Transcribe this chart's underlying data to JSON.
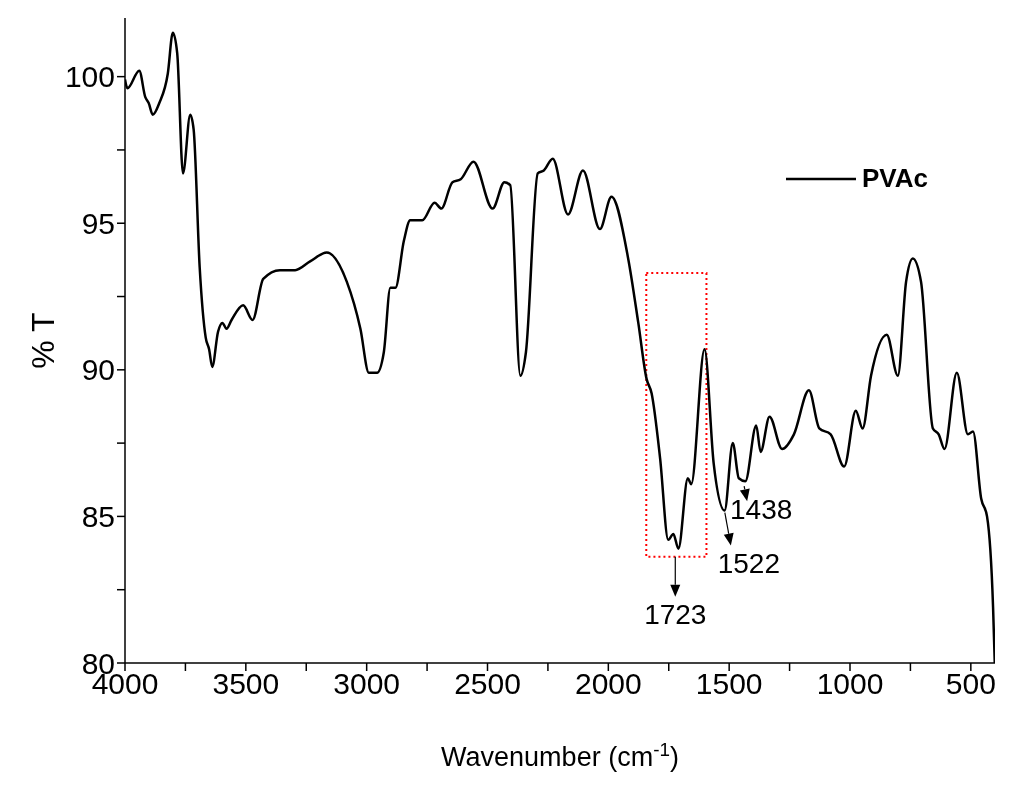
{
  "chart_data": {
    "type": "line",
    "xlabel": "Wavenumber (cm$^{-1}$)",
    "ylabel": "% T",
    "xlim": [
      4000,
      400
    ],
    "xticks": [
      4000,
      {
        "value": 3750,
        "label": null
      },
      3500,
      {
        "value": 3250,
        "label": null
      },
      3000,
      {
        "value": 2750,
        "label": null
      },
      2500,
      {
        "value": 2250,
        "label": null
      },
      2000,
      {
        "value": 1750,
        "label": null
      },
      1500,
      {
        "value": 1250,
        "label": null
      },
      1000,
      {
        "value": 750,
        "label": null
      },
      500
    ],
    "ylim": [
      80,
      102
    ],
    "yticks": [
      80,
      {
        "value": 82.5,
        "label": null
      },
      85,
      {
        "value": 87.5,
        "label": null
      },
      90,
      {
        "value": 92.5,
        "label": null
      },
      95,
      {
        "value": 97.5,
        "label": null
      },
      100
    ],
    "legend": "top right",
    "marker": "none",
    "line_style": "solid",
    "grid": false,
    "x": [
      4000,
      3990,
      3941,
      3916,
      3902,
      3885,
      3858,
      3823,
      3802,
      3784,
      3760,
      3730,
      3716,
      3691,
      3666,
      3652,
      3639,
      3615,
      3597,
      3580,
      3559,
      3511,
      3472,
      3428,
      3359,
      3296,
      3234,
      3165,
      3082,
      3026,
      2991,
      2957,
      2929,
      2902,
      2881,
      2846,
      2820,
      2770,
      2719,
      2691,
      2645,
      2611,
      2558,
      2479,
      2430,
      2406,
      2364,
      2341,
      2292,
      2267,
      2230,
      2167,
      2105,
      2035,
      1987,
      1918,
      1876,
      1842,
      1821,
      1786,
      1752,
      1731,
      1710,
      1671,
      1657,
      1602,
      1564,
      1519,
      1485,
      1460,
      1433,
      1388,
      1370,
      1333,
      1281,
      1232,
      1170,
      1127,
      1080,
      1024,
      976,
      948,
      913,
      848,
      802,
      768,
      740,
      706,
      657,
      633,
      609,
      558,
      512,
      491,
      457,
      433,
      408,
      401
    ],
    "series": [
      {
        "name": "PVAc",
        "color": "#000000",
        "values": [
          99.9,
          99.6,
          100.2,
          99.3,
          99.1,
          98.7,
          99.1,
          100.1,
          101.5,
          100.8,
          96.7,
          98.7,
          98.2,
          93.5,
          91.1,
          90.7,
          90.1,
          91.3,
          91.6,
          91.4,
          91.7,
          92.2,
          91.7,
          93.1,
          93.4,
          93.4,
          93.7,
          94.0,
          93.0,
          91.4,
          89.9,
          89.9,
          90.6,
          92.8,
          92.8,
          94.4,
          95.1,
          95.1,
          95.7,
          95.5,
          96.4,
          96.5,
          97.1,
          95.5,
          96.4,
          96.3,
          89.8,
          90.6,
          96.7,
          96.8,
          97.2,
          95.3,
          96.8,
          94.8,
          95.9,
          93.8,
          91.6,
          89.7,
          89.2,
          87.0,
          84.2,
          84.4,
          83.9,
          86.3,
          86.1,
          90.7,
          86.8,
          85.2,
          87.5,
          86.3,
          86.2,
          88.1,
          87.2,
          88.4,
          87.3,
          87.8,
          89.3,
          88.0,
          87.8,
          86.7,
          88.6,
          88.0,
          89.8,
          91.2,
          89.8,
          93.0,
          93.8,
          93.0,
          88.0,
          87.8,
          87.3,
          89.9,
          87.8,
          87.9,
          85.6,
          85.0,
          81.9,
          80.0
        ]
      }
    ],
    "annotations": [
      {
        "text": "1723",
        "x": 1723,
        "y": 83.9
      },
      {
        "text": "1522",
        "x": 1522,
        "y": 85.2
      },
      {
        "text": "1438",
        "x": 1438,
        "y": 86.2
      }
    ]
  }
}
